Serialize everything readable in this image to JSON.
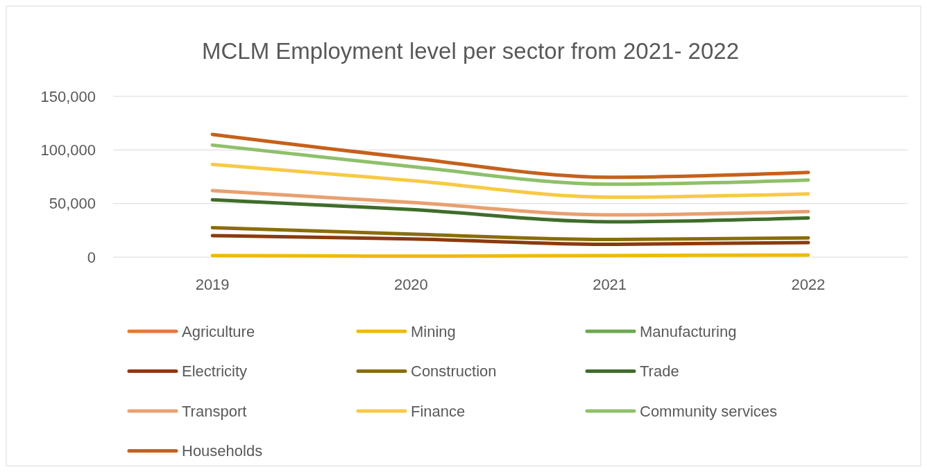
{
  "chart_data": {
    "type": "line",
    "title": "MCLM Employment level per sector from 2021- 2022",
    "categories": [
      "2019",
      "2020",
      "2021",
      "2022"
    ],
    "ylim": [
      0,
      150000
    ],
    "yticks": [
      {
        "value": 0,
        "label": "0"
      },
      {
        "value": 50000,
        "label": "50,000"
      },
      {
        "value": 100000,
        "label": "100,000"
      },
      {
        "value": 150000,
        "label": "150,000"
      }
    ],
    "grid": "y",
    "legend": "bottom",
    "series": [
      {
        "name": "Agriculture",
        "color": "#e07b39",
        "values": [
          null,
          null,
          null,
          null
        ]
      },
      {
        "name": "Mining",
        "color": "#f0b90b",
        "values": [
          1500,
          1000,
          1500,
          2000
        ]
      },
      {
        "name": "Manufacturing",
        "color": "#6aa84f",
        "values": [
          null,
          null,
          null,
          null
        ]
      },
      {
        "name": "Electricity",
        "color": "#8b3a0e",
        "values": [
          20000,
          17000,
          12000,
          13500
        ]
      },
      {
        "name": "Construction",
        "color": "#8a6d0b",
        "values": [
          27500,
          21500,
          16500,
          18000
        ]
      },
      {
        "name": "Trade",
        "color": "#3f6d2a",
        "values": [
          53500,
          44500,
          33000,
          36500
        ]
      },
      {
        "name": "Transport",
        "color": "#e8a070",
        "values": [
          62000,
          51000,
          39500,
          42500
        ]
      },
      {
        "name": "Finance",
        "color": "#f7ca45",
        "values": [
          86500,
          71500,
          56000,
          59000
        ]
      },
      {
        "name": "Community services",
        "color": "#8fc06a",
        "values": [
          104500,
          84500,
          68000,
          72000
        ]
      },
      {
        "name": "Households",
        "color": "#c5611c",
        "values": [
          114500,
          92500,
          74500,
          79000
        ]
      }
    ]
  }
}
